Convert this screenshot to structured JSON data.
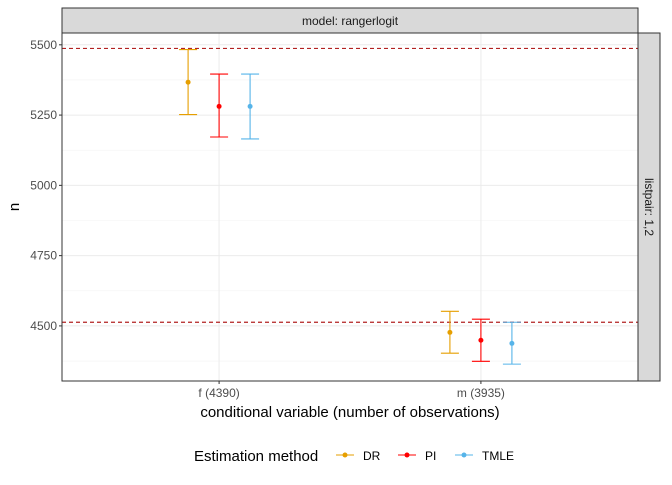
{
  "chart_data": {
    "type": "errorbar-point",
    "facet_top": "model: rangerlogit",
    "facet_right": "listpair: 1,2",
    "xlabel": "conditional variable (number of observations)",
    "ylabel": "n",
    "categories": [
      "f (4390)",
      "m (3935)"
    ],
    "ylim": [
      4304,
      5542
    ],
    "yticks": [
      4500,
      4750,
      5000,
      5250,
      5500
    ],
    "grid": true,
    "legend": {
      "title": "Estimation method",
      "placement": "bottom"
    },
    "reference_lines": [
      5487,
      4513
    ],
    "reference_line_color": "#B22222",
    "series": [
      {
        "name": "DR",
        "color": "#E69F00",
        "estimate": [
          5367,
          4477
        ],
        "lower": [
          5252,
          4403
        ],
        "upper": [
          5483,
          4552
        ]
      },
      {
        "name": "PI",
        "color": "#FF0000",
        "estimate": [
          5281,
          4449
        ],
        "lower": [
          5172,
          4374
        ],
        "upper": [
          5396,
          4524
        ]
      },
      {
        "name": "TMLE",
        "color": "#56B4E9",
        "estimate": [
          5281,
          4438
        ],
        "lower": [
          5165,
          4364
        ],
        "upper": [
          5396,
          4513
        ]
      }
    ]
  }
}
